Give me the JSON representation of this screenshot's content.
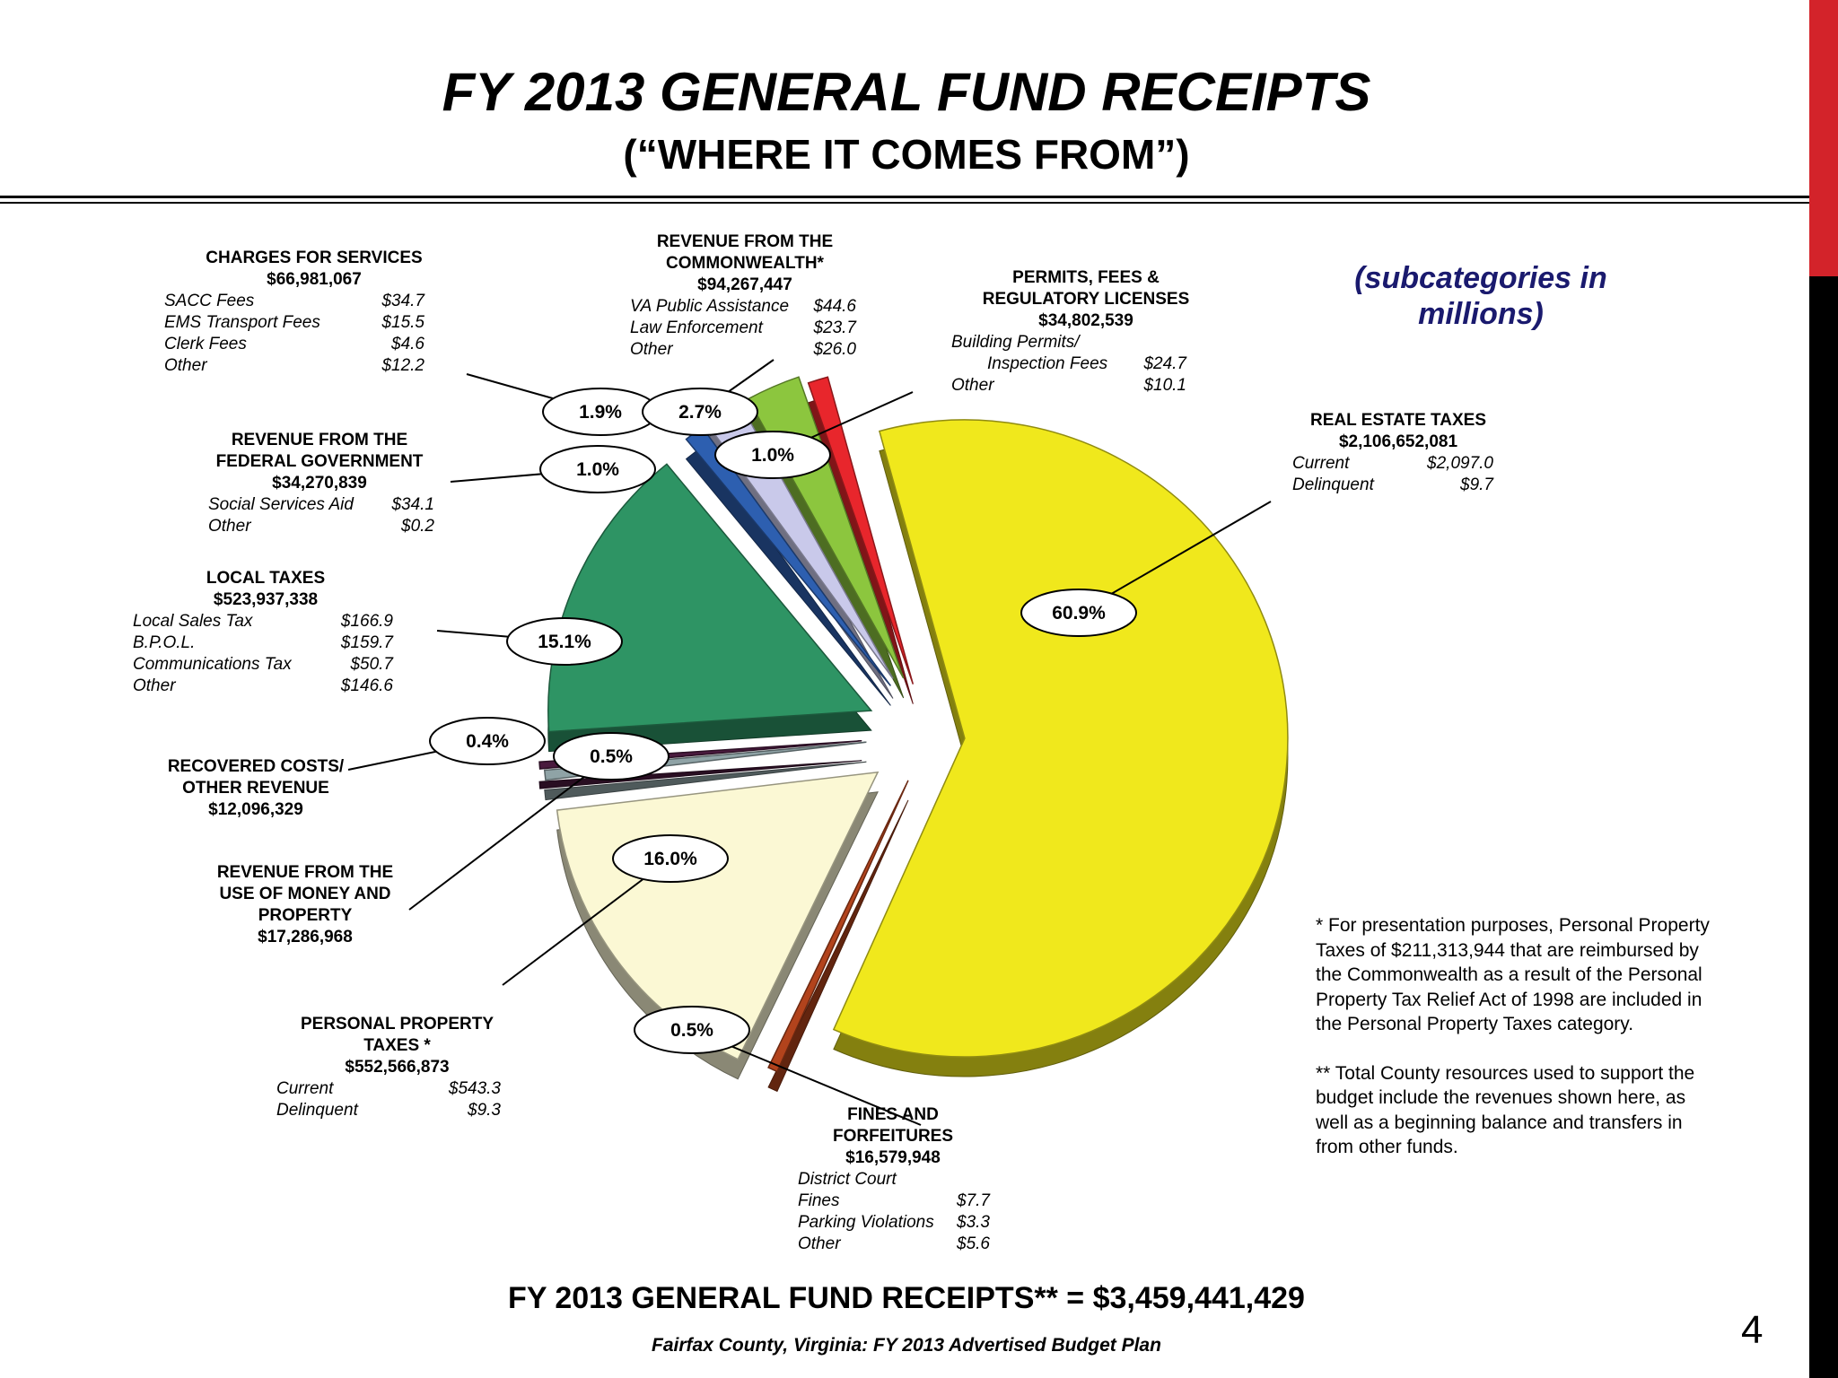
{
  "header": {
    "title": "FY 2013 GENERAL FUND RECEIPTS",
    "subtitle": "(“WHERE IT COMES FROM”)"
  },
  "note": {
    "line1": "(subcategories in",
    "line2": "millions)"
  },
  "page_number": "4",
  "total_line": "FY 2013 GENERAL FUND RECEIPTS** = $3,459,441,429",
  "source_line": "Fairfax County, Virginia: FY 2013 Advertised Budget Plan",
  "footnotes": {
    "f1": "* For presentation purposes, Personal Property Taxes of $211,313,944 that are reimbursed by the Commonwealth as a result of the Personal Property Tax Relief Act of 1998 are included in the Personal Property Taxes category.",
    "f2": "** Total County resources used to support the budget include the revenues shown here, as well as a beginning balance and transfers in from other funds."
  },
  "labels": {
    "charges": {
      "h1": "CHARGES FOR SERVICES",
      "amount": "$66,981,067",
      "rows": [
        [
          "SACC Fees",
          "$34.7"
        ],
        [
          "EMS Transport Fees",
          "$15.5"
        ],
        [
          "Clerk Fees",
          "$4.6"
        ],
        [
          "Other",
          "$12.2"
        ]
      ]
    },
    "commonwealth": {
      "h1": "REVENUE FROM THE",
      "h2": "COMMONWEALTH*",
      "amount": "$94,267,447",
      "rows": [
        [
          "VA Public Assistance",
          "$44.6"
        ],
        [
          "Law Enforcement",
          "$23.7"
        ],
        [
          "Other",
          "$26.0"
        ]
      ]
    },
    "permits": {
      "h1": "PERMITS, FEES &",
      "h2": "REGULATORY LICENSES",
      "amount": "$34,802,539",
      "rows": [
        [
          "Building Permits/",
          ""
        ],
        [
          "Inspection Fees",
          "$24.7"
        ],
        [
          "Other",
          "$10.1"
        ]
      ]
    },
    "real_estate": {
      "h1": "REAL ESTATE TAXES",
      "amount": "$2,106,652,081",
      "rows": [
        [
          "Current",
          "$2,097.0"
        ],
        [
          "Delinquent",
          "$9.7"
        ]
      ]
    },
    "federal": {
      "h1": "REVENUE FROM THE",
      "h2": "FEDERAL GOVERNMENT",
      "amount": "$34,270,839",
      "rows": [
        [
          "Social Services Aid",
          "$34.1"
        ],
        [
          "Other",
          "$0.2"
        ]
      ]
    },
    "local": {
      "h1": "LOCAL TAXES",
      "amount": "$523,937,338",
      "rows": [
        [
          "Local Sales Tax",
          "$166.9"
        ],
        [
          "B.P.O.L.",
          "$159.7"
        ],
        [
          "Communications Tax",
          "$50.7"
        ],
        [
          "Other",
          "$146.6"
        ]
      ]
    },
    "recovered": {
      "h1": "RECOVERED COSTS/",
      "h2": "OTHER REVENUE",
      "amount": "$12,096,329"
    },
    "money": {
      "h1": "REVENUE FROM THE",
      "h2": "USE OF MONEY AND",
      "h3": "PROPERTY",
      "amount": "$17,286,968"
    },
    "personal": {
      "h1": "PERSONAL PROPERTY",
      "h2": "TAXES *",
      "amount": "$552,566,873",
      "rows": [
        [
          "Current",
          "$543.3"
        ],
        [
          "Delinquent",
          "$9.3"
        ]
      ]
    },
    "fines": {
      "h1": "FINES AND",
      "h2": "FORFEITURES",
      "amount": "$16,579,948",
      "rows": [
        [
          "District Court",
          ""
        ],
        [
          "Fines",
          "$7.7"
        ],
        [
          "Parking Violations",
          "$3.3"
        ],
        [
          "Other",
          "$5.6"
        ]
      ]
    }
  },
  "chart_data": {
    "type": "pie",
    "title": "FY 2013 GENERAL FUND RECEIPTS",
    "slices": [
      {
        "label": "REAL ESTATE TAXES",
        "value": 2106652081,
        "pct_label": "60.9%",
        "color": "#f0e81c"
      },
      {
        "label": "FINES AND FORFEITURES",
        "value": 16579948,
        "pct_label": "0.5%",
        "color": "#b2431c"
      },
      {
        "label": "PERSONAL PROPERTY TAXES *",
        "value": 552566873,
        "pct_label": "16.0%",
        "color": "#fbf8d4"
      },
      {
        "label": "REVENUE FROM THE USE OF MONEY AND PROPERTY",
        "value": 17286968,
        "pct_label": "0.5%",
        "color": "#8fa3a6"
      },
      {
        "label": "RECOVERED COSTS/ OTHER REVENUE",
        "value": 12096329,
        "pct_label": "0.4%",
        "color": "#4a1a3e"
      },
      {
        "label": "LOCAL TAXES",
        "value": 523937338,
        "pct_label": "15.1%",
        "color": "#2e9464"
      },
      {
        "label": "REVENUE FROM THE FEDERAL GOVERNMENT",
        "value": 34270839,
        "pct_label": "1.0%",
        "color": "#2d5fb0"
      },
      {
        "label": "CHARGES FOR SERVICES",
        "value": 66981067,
        "pct_label": "1.9%",
        "color": "#c9c9ea"
      },
      {
        "label": "REVENUE FROM THE COMMONWEALTH*",
        "value": 94267447,
        "pct_label": "2.7%",
        "color": "#8cc63e"
      },
      {
        "label": "PERMITS, FEES & REGULATORY LICENSES",
        "value": 34802539,
        "pct_label": "1.0%",
        "color": "#e8262c"
      }
    ],
    "total": "$3,459,441,429",
    "legend": "none"
  }
}
